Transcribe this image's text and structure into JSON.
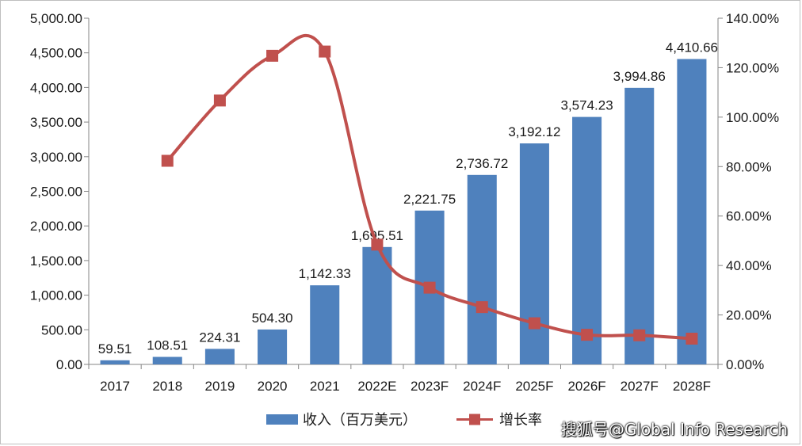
{
  "chart_data": {
    "type": "bar",
    "categories": [
      "2017",
      "2018",
      "2019",
      "2020",
      "2021",
      "2022E",
      "2023F",
      "2024F",
      "2025F",
      "2026F",
      "2027F",
      "2028F"
    ],
    "series": [
      {
        "name": "收入（百万美元）",
        "type": "bar",
        "axis": "left",
        "values": [
          59.51,
          108.51,
          224.31,
          504.3,
          1142.33,
          1695.51,
          2221.75,
          2736.72,
          3192.12,
          3574.23,
          3994.86,
          4410.66
        ],
        "labels": [
          "59.51",
          "108.51",
          "224.31",
          "504.30",
          "1,142.33",
          "1,695.51",
          "2,221.75",
          "2,736.72",
          "3,192.12",
          "3,574.23",
          "3,994.86",
          "4,410.66"
        ],
        "color": "#4f81bd"
      },
      {
        "name": "增长率",
        "type": "line",
        "axis": "right",
        "values": [
          null,
          82.34,
          106.72,
          124.82,
          126.52,
          48.43,
          31.04,
          23.18,
          16.64,
          11.97,
          11.77,
          10.41
        ],
        "color": "#c0504d"
      }
    ],
    "left_axis": {
      "min": 0,
      "max": 5000,
      "step": 500,
      "ticks": [
        "0.00",
        "500.00",
        "1,000.00",
        "1,500.00",
        "2,000.00",
        "2,500.00",
        "3,000.00",
        "3,500.00",
        "4,000.00",
        "4,500.00",
        "5,000.00"
      ]
    },
    "right_axis": {
      "min": 0,
      "max": 140,
      "step": 20,
      "ticks": [
        "0.00%",
        "20.00%",
        "40.00%",
        "60.00%",
        "80.00%",
        "100.00%",
        "120.00%",
        "140.00%"
      ]
    },
    "grid": false,
    "legend_position": "bottom"
  },
  "watermark": "搜狐号@Global Info Research"
}
